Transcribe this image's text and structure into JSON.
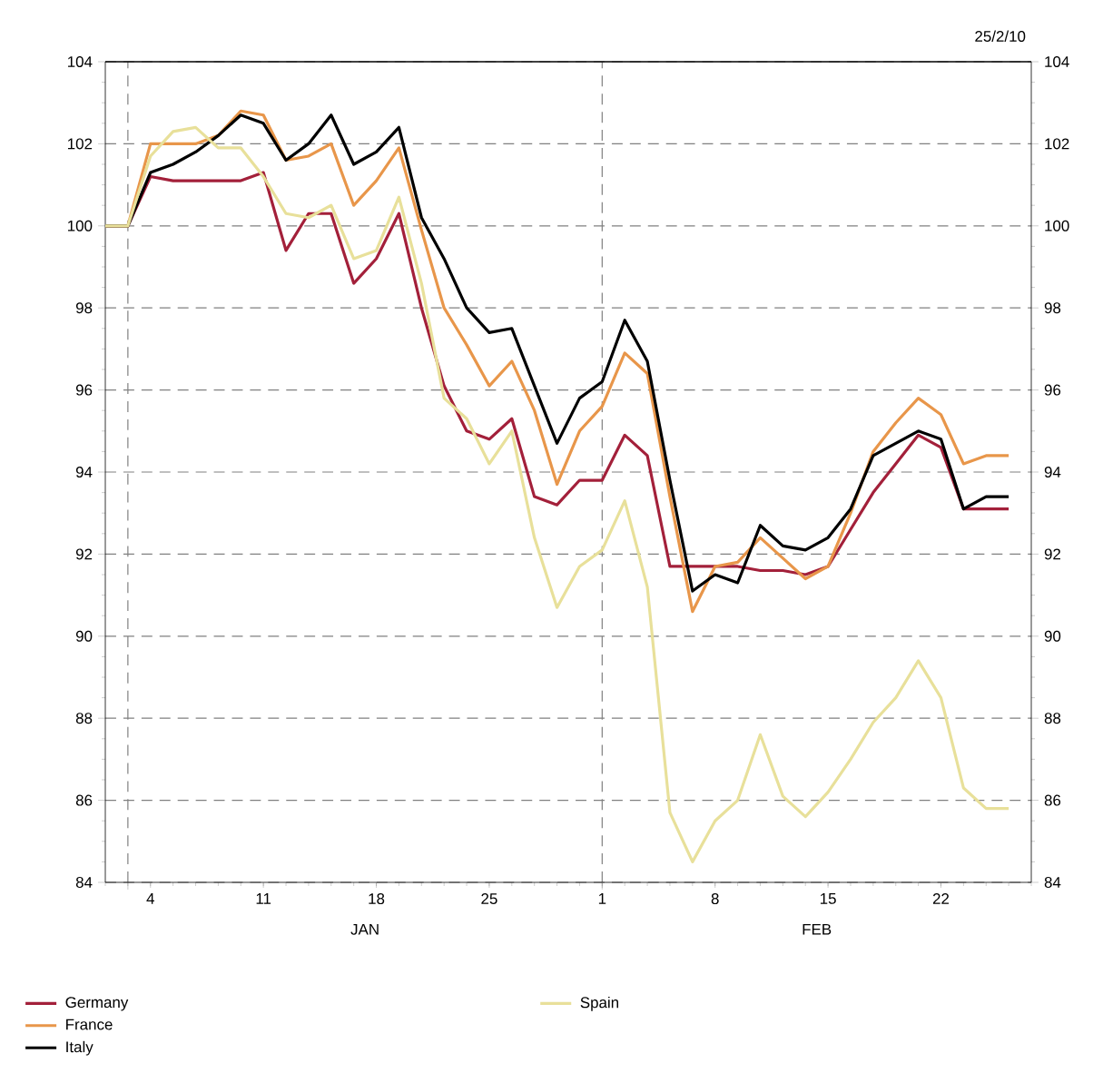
{
  "chart_data": {
    "type": "line",
    "categories": [
      null,
      null,
      "4",
      null,
      null,
      null,
      null,
      "11",
      null,
      null,
      null,
      null,
      "18",
      null,
      null,
      null,
      null,
      "25",
      null,
      null,
      null,
      null,
      "1",
      null,
      null,
      null,
      null,
      "8",
      null,
      null,
      null,
      null,
      "15",
      null,
      null,
      null,
      null,
      "22",
      null,
      null,
      null,
      null
    ],
    "series": [
      {
        "name": "Germany",
        "color": "#a3203a",
        "values": [
          100,
          100,
          101.2,
          101.1,
          101.1,
          101.1,
          101.1,
          101.3,
          99.4,
          100.3,
          100.3,
          98.6,
          99.2,
          100.3,
          98.0,
          96.1,
          95.0,
          94.8,
          95.3,
          93.4,
          93.2,
          93.8,
          93.8,
          94.9,
          94.4,
          91.7,
          91.7,
          91.7,
          91.7,
          91.6,
          91.6,
          91.5,
          91.7,
          92.6,
          93.5,
          94.2,
          94.9,
          94.6,
          93.1,
          93.1,
          93.1,
          null
        ]
      },
      {
        "name": "France",
        "color": "#e8964a",
        "values": [
          100,
          100,
          102.0,
          102.0,
          102.0,
          102.2,
          102.8,
          102.7,
          101.6,
          101.7,
          102.0,
          100.5,
          101.1,
          101.9,
          99.9,
          98.0,
          97.1,
          96.1,
          96.7,
          95.5,
          93.7,
          95.0,
          95.6,
          96.9,
          96.4,
          93.4,
          90.6,
          91.7,
          91.8,
          92.4,
          91.9,
          91.4,
          91.7,
          93.0,
          94.5,
          95.2,
          95.8,
          95.4,
          94.2,
          94.4,
          94.4,
          null
        ]
      },
      {
        "name": "Italy",
        "color": "#000000",
        "values": [
          100,
          100,
          101.3,
          101.5,
          101.8,
          102.2,
          102.7,
          102.5,
          101.6,
          102.0,
          102.7,
          101.5,
          101.8,
          102.4,
          100.2,
          99.2,
          98.0,
          97.4,
          97.5,
          96.1,
          94.7,
          95.8,
          96.2,
          97.7,
          96.7,
          93.8,
          91.1,
          91.5,
          91.3,
          92.7,
          92.2,
          92.1,
          92.4,
          93.1,
          94.4,
          94.7,
          95.0,
          94.8,
          93.1,
          93.4,
          93.4,
          null
        ]
      },
      {
        "name": "Spain",
        "color": "#e8e09a",
        "values": [
          100,
          100,
          101.7,
          102.3,
          102.4,
          101.9,
          101.9,
          101.2,
          100.3,
          100.2,
          100.5,
          99.2,
          99.4,
          100.7,
          98.6,
          95.8,
          95.3,
          94.2,
          95.0,
          92.4,
          90.7,
          91.7,
          92.1,
          93.3,
          91.2,
          85.7,
          84.5,
          85.5,
          86.0,
          87.6,
          86.1,
          85.6,
          86.2,
          87.0,
          87.9,
          88.5,
          89.4,
          88.5,
          86.3,
          85.8,
          85.8,
          null
        ]
      }
    ],
    "ylim": [
      84,
      104
    ],
    "yticks": [
      84,
      86,
      88,
      90,
      92,
      94,
      96,
      98,
      100,
      102,
      104
    ],
    "y2lim": [
      84,
      104
    ],
    "y2ticks": [
      84,
      86,
      88,
      90,
      92,
      94,
      96,
      98,
      100,
      102,
      104
    ],
    "grid": true,
    "legend": "bottom",
    "annotations": [
      "25/2/10",
      "JAN",
      "FEB"
    ]
  }
}
